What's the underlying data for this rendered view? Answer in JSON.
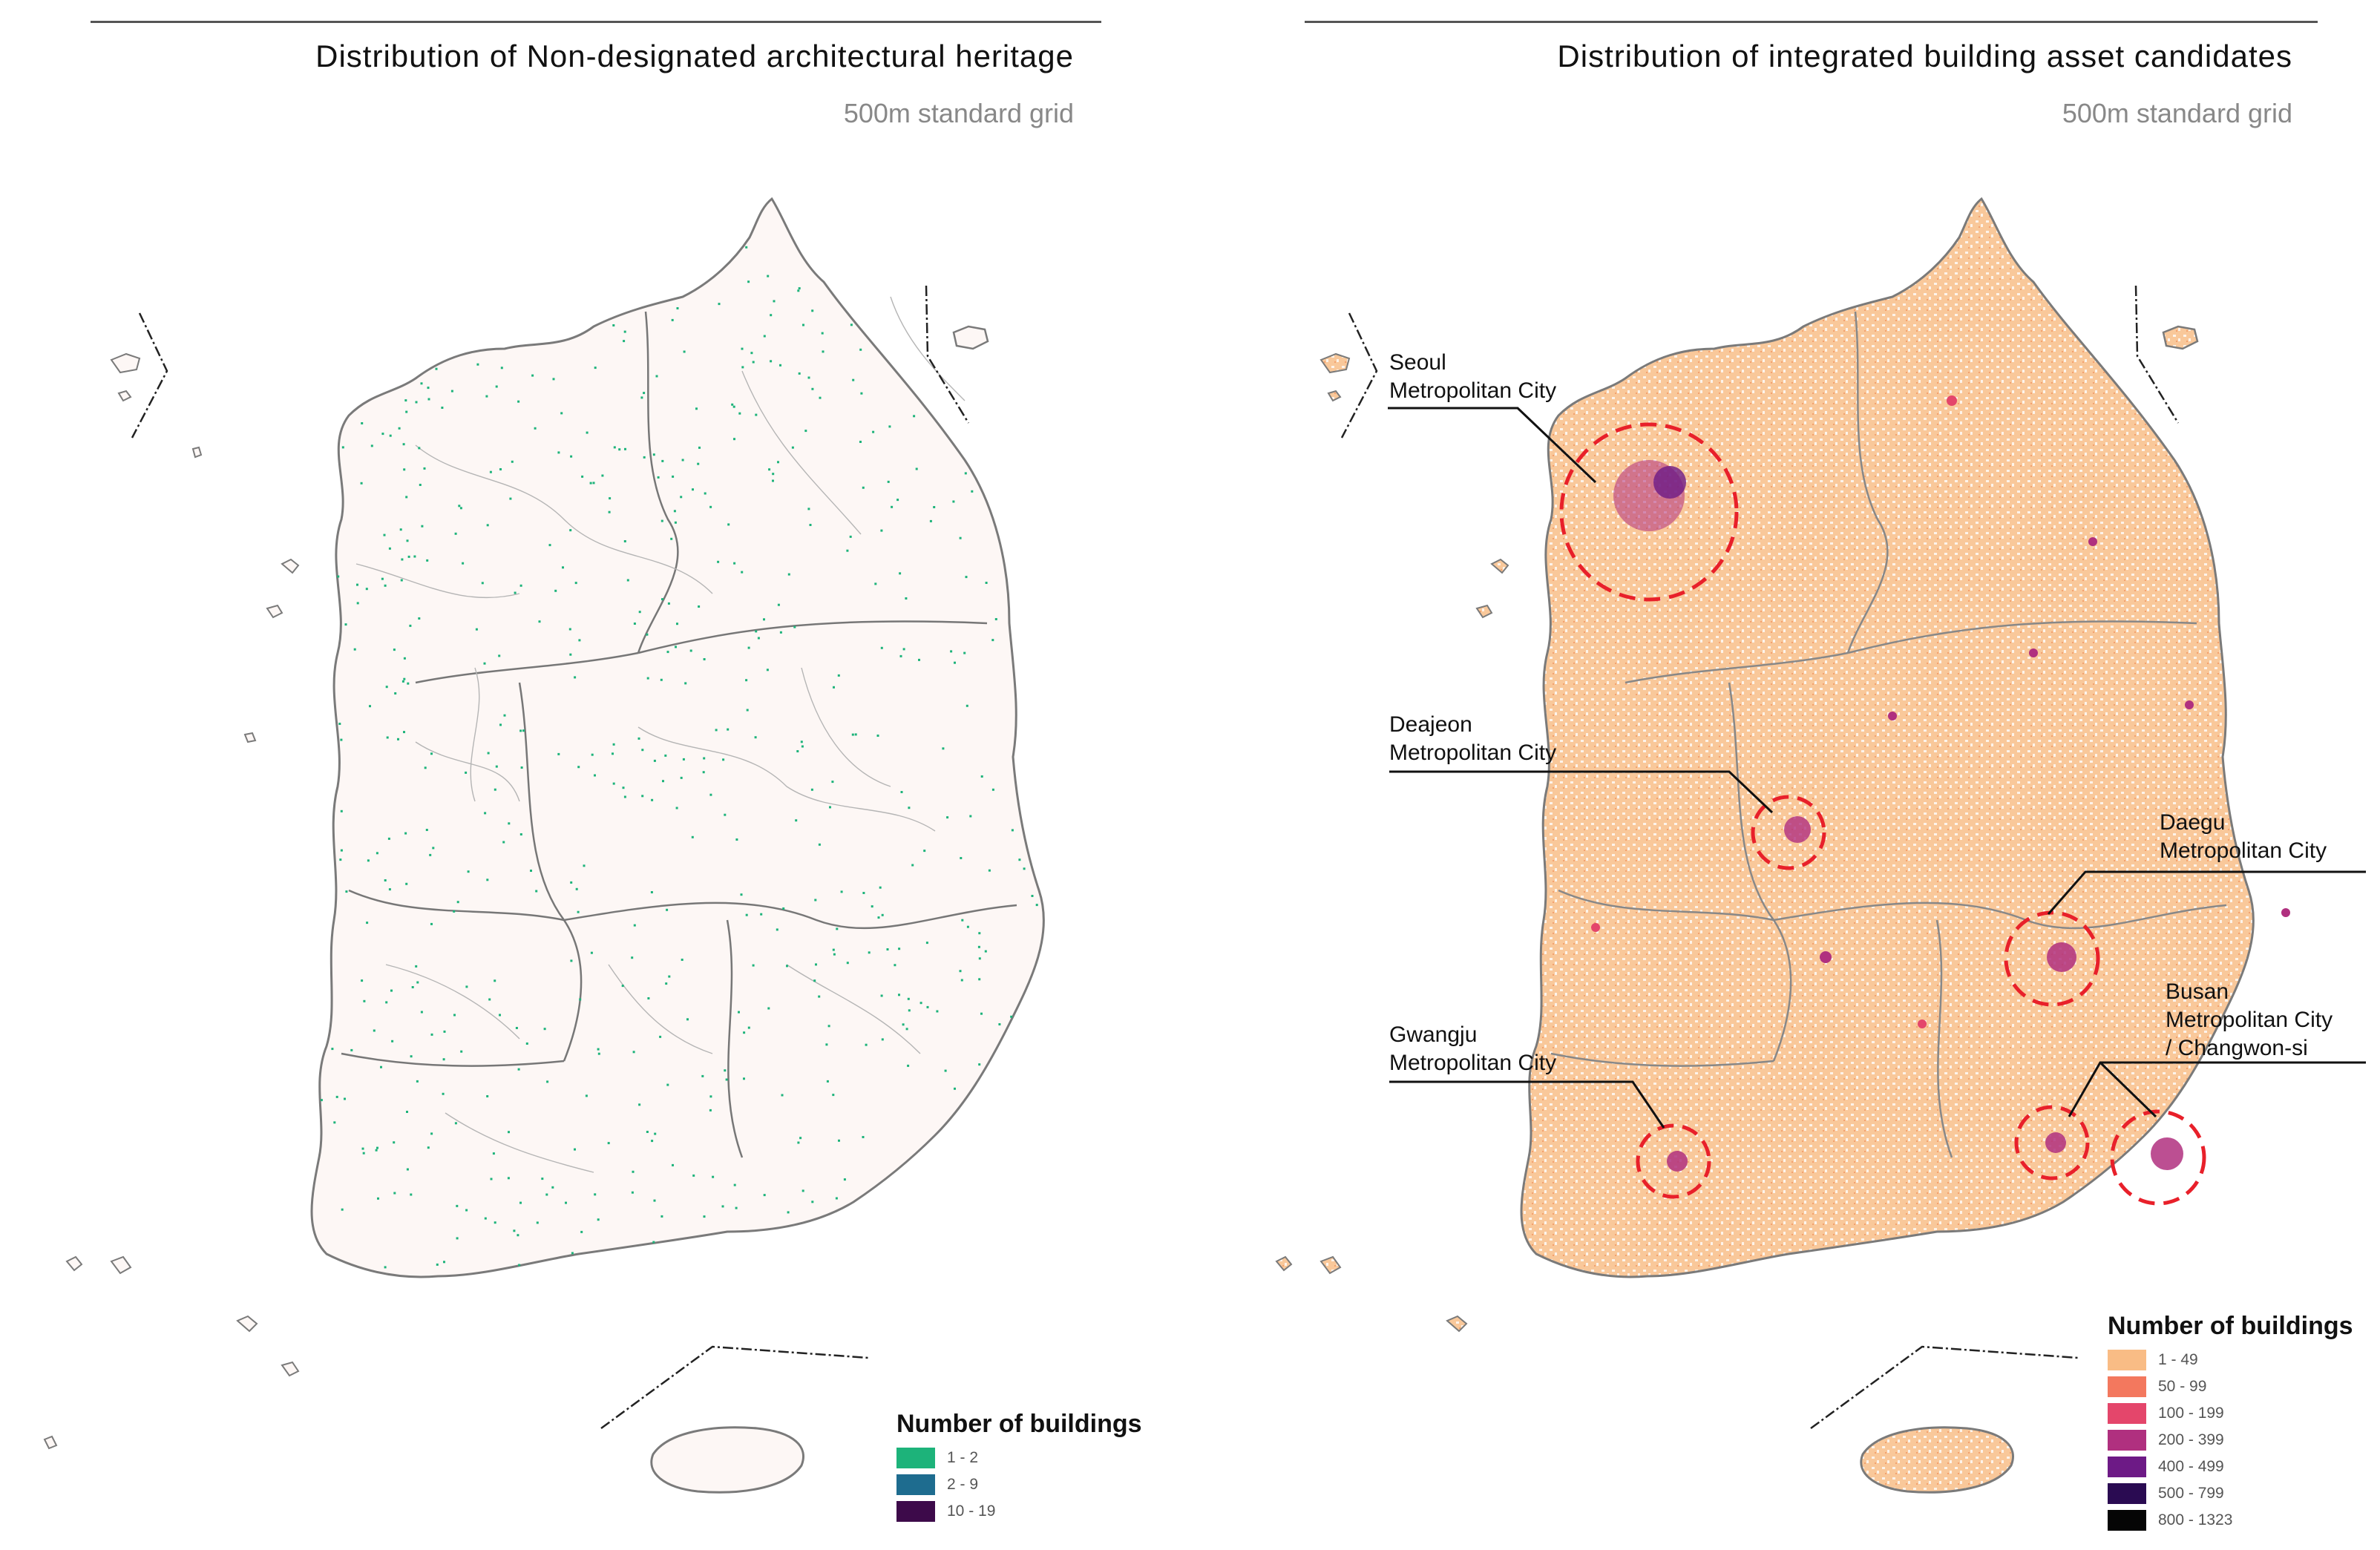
{
  "left_panel": {
    "title": "Distribution of Non-designated architectural heritage",
    "subtitle": "500m standard grid",
    "legend": {
      "title": "Number of buildings",
      "items": [
        {
          "label": "1 - 2",
          "color": "#1db37a"
        },
        {
          "label": "2 - 9",
          "color": "#1e6c8f"
        },
        {
          "label": "10 - 19",
          "color": "#3d0a4a"
        }
      ]
    }
  },
  "right_panel": {
    "title": "Distribution of integrated building asset candidates",
    "subtitle": "500m standard grid",
    "legend": {
      "title": "Number of buildings",
      "items": [
        {
          "label": "1 - 49",
          "color": "#f9bc85"
        },
        {
          "label": "50 - 99",
          "color": "#f3785e"
        },
        {
          "label": "100 - 199",
          "color": "#e4466b"
        },
        {
          "label": "200 - 399",
          "color": "#b0307f"
        },
        {
          "label": "400 - 499",
          "color": "#6d1a86"
        },
        {
          "label": "500 - 799",
          "color": "#2a0b52"
        },
        {
          "label": "800 - 1323",
          "color": "#050505"
        }
      ]
    },
    "callouts": [
      {
        "line1": "Seoul",
        "line2": "Metropolitan City"
      },
      {
        "line1": "Deajeon",
        "line2": "Metropolitan City"
      },
      {
        "line1": "Daegu",
        "line2": "Metropolitan City"
      },
      {
        "line1": "Gwangju",
        "line2": "Metropolitan City"
      },
      {
        "line1": "Busan",
        "line2": "Metropolitan City",
        "line3": "/ Changwon-si"
      }
    ]
  },
  "colors": {
    "land": "#fdf7f5",
    "boundary": "#7a7a7a",
    "heritage_dot": "#1db37a",
    "asset_fill": "#f9c89a",
    "hotspot": "#b0307f",
    "highlight_circle": "#e8202a"
  }
}
